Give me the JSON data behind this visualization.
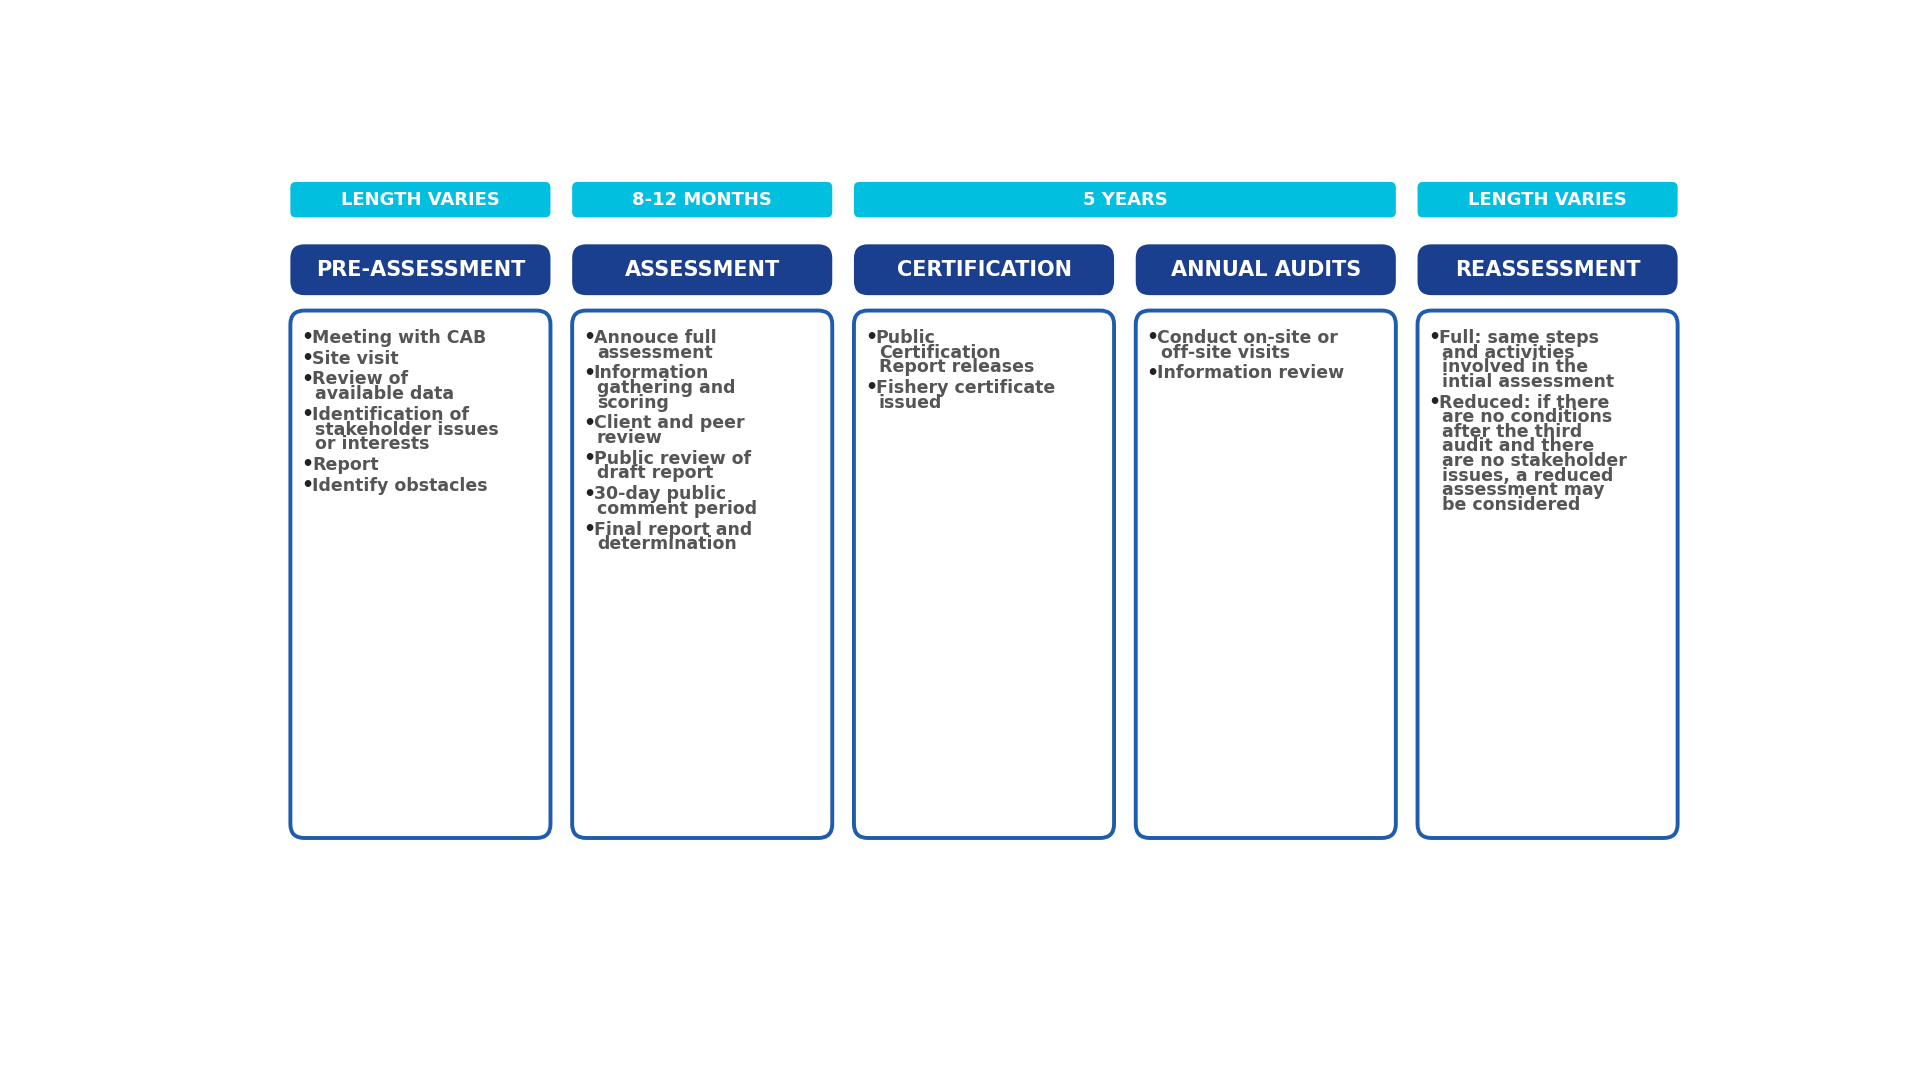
{
  "background_color": "#ffffff",
  "columns": [
    {
      "duration_label": "LENGTH VARIES",
      "title": "PRE-ASSESSMENT",
      "bullets": [
        "Meeting with CAB",
        "Site visit",
        "Review of\navailable data",
        "Identification of\nstakeholder issues\nor interests",
        "Report",
        "Identify obstacles"
      ]
    },
    {
      "duration_label": "8-12 MONTHS",
      "title": "ASSESSMENT",
      "bullets": [
        "Annouce full\nassessment",
        "Information\ngathering and\nscoring",
        "Client and peer\nreview",
        "Public review of\ndraft report",
        "30-day public\ncomment period",
        "Final report and\ndetermination"
      ]
    },
    {
      "duration_label": "5 YEARS",
      "title": "CERTIFICATION",
      "bullets": [
        "Public\nCertification\nReport releases",
        "Fishery certificate\nissued"
      ]
    },
    {
      "duration_label": "5 YEARS",
      "title": "ANNUAL AUDITS",
      "bullets": [
        "Conduct on-site or\noff-site visits",
        "Information review"
      ]
    },
    {
      "duration_label": "LENGTH VARIES",
      "title": "REASSESSMENT",
      "bullets": [
        "Full: same steps\nand activities\ninvolved in the\nintial assessment",
        "Reduced: if there\nare no conditions\nafter the third\naudit and there\nare no stakeholder\nissues, a reduced\nassessment may\nbe considered"
      ]
    }
  ],
  "cyan_color": "#00BFDF",
  "dark_blue_color": "#1A3F8F",
  "blue_border_color": "#1E5CAD",
  "text_color": "#555555",
  "white_color": "#FFFFFF",
  "duration_fontsize": 13,
  "title_fontsize": 15,
  "bullet_fontsize": 12.5
}
